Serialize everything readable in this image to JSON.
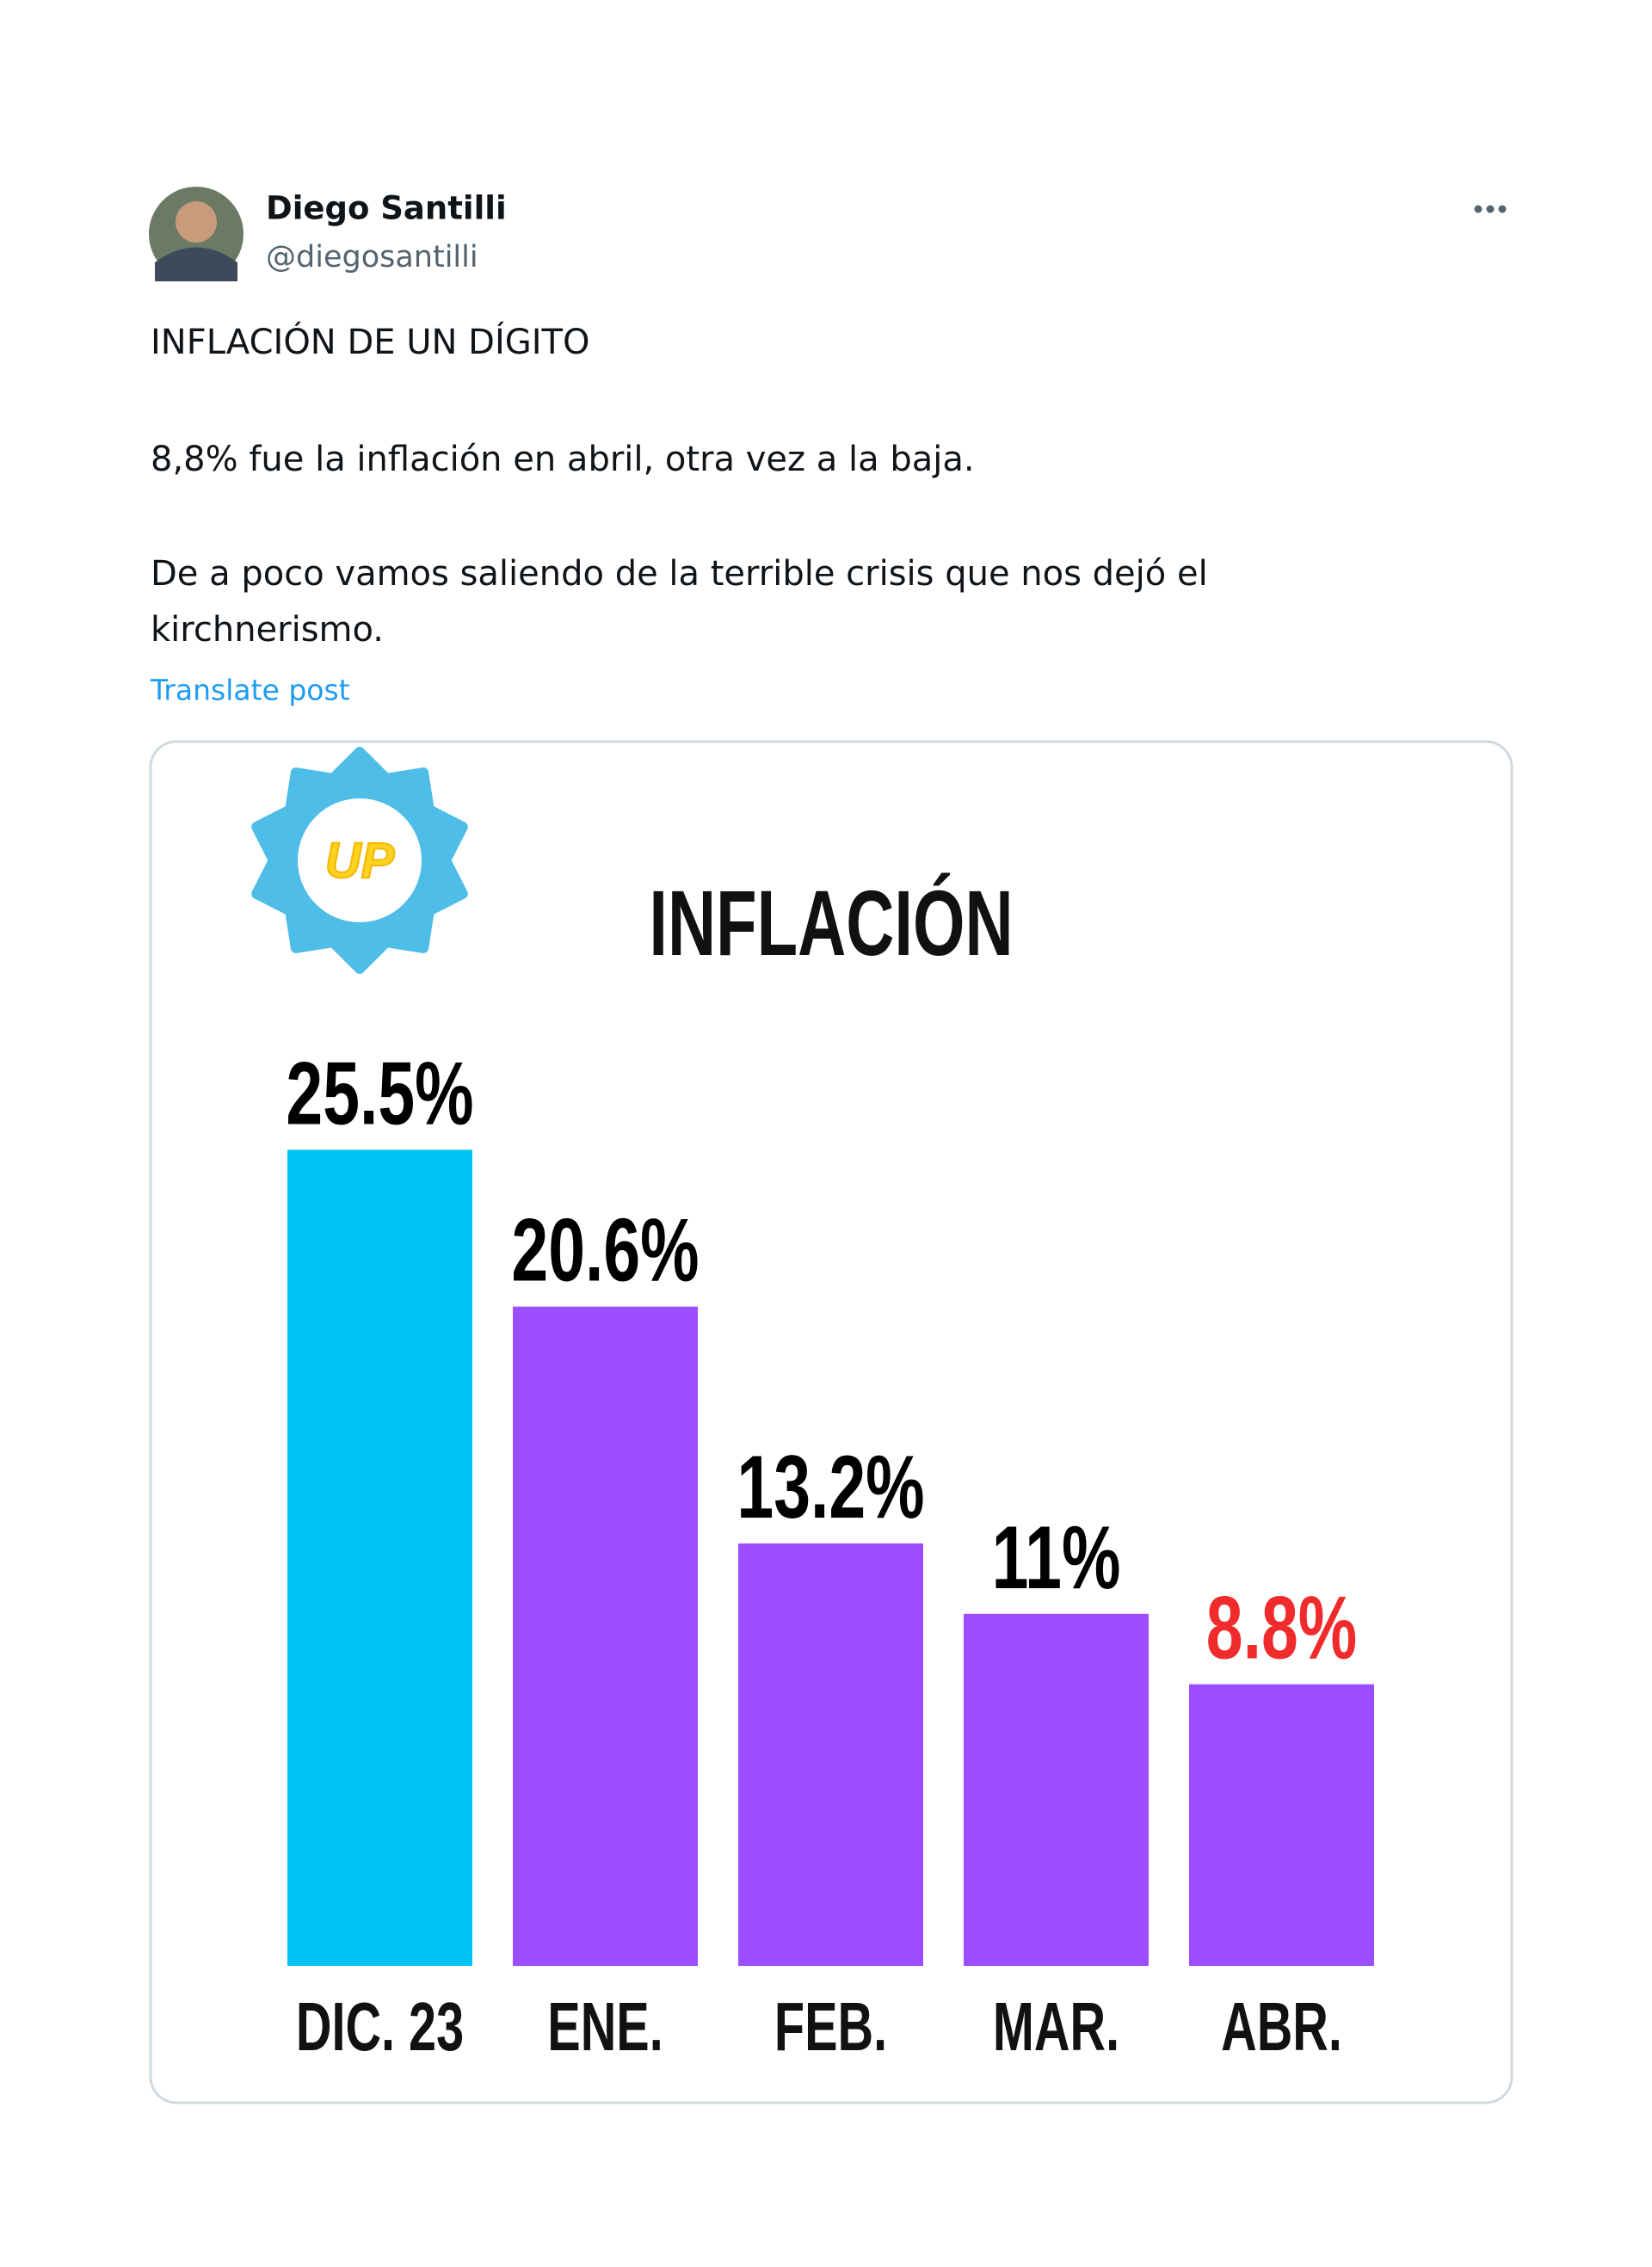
{
  "tweet": {
    "author": "Diego Santilli",
    "handle": "@diegosantilli",
    "text": [
      "INFLACIÓN DE UN DÍGITO",
      "8,8% fue la inflación en abril, otra vez a la baja.",
      "De a poco vamos saliendo de la terrible crisis que nos dejó el",
      "kirchnerismo."
    ],
    "translate": "Translate post"
  },
  "chart_data": {
    "type": "bar",
    "title": "INFLACIÓN",
    "logo_text": "UP",
    "categories": [
      "DIC. 23",
      "ENE.",
      "FEB.",
      "MAR.",
      "ABR."
    ],
    "values": [
      25.5,
      20.6,
      13.2,
      11,
      8.8
    ],
    "value_labels": [
      "25.5%",
      "20.6%",
      "13.2%",
      "11%",
      "8.8%"
    ],
    "colors": [
      "#00c3f5",
      "#9b4dff",
      "#9b4dff",
      "#9b4dff",
      "#9b4dff"
    ],
    "value_label_colors": [
      "#000000",
      "#000000",
      "#000000",
      "#000000",
      "#f02b2b"
    ]
  }
}
